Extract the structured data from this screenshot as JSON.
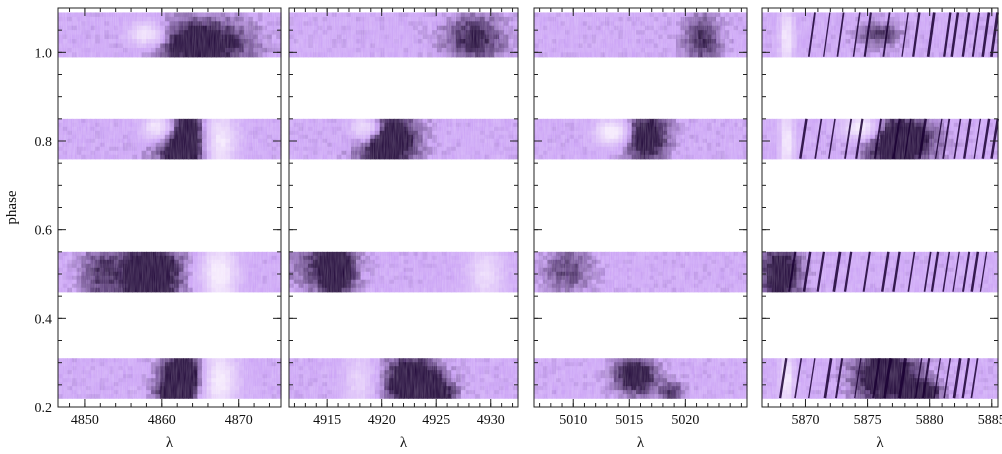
{
  "chart_data": {
    "type": "heatmap",
    "ylabel": "phase",
    "ylim": [
      0.2,
      1.1
    ],
    "y_ticks": [
      0.2,
      0.4,
      0.6,
      0.8,
      1.0
    ],
    "y_tick_labels": [
      "0.2",
      "0.4",
      "0.6",
      "0.8",
      "1.0"
    ],
    "y_minor_step": 0.05,
    "colors": {
      "background": "#f4e8fc",
      "mid": "#c79cf5",
      "dark": "#1a0033",
      "frame": "#222222"
    },
    "phase_bands": [
      {
        "from": 0.22,
        "to": 0.31
      },
      {
        "from": 0.46,
        "to": 0.55
      },
      {
        "from": 0.76,
        "to": 0.85
      },
      {
        "from": 0.99,
        "to": 1.09
      }
    ],
    "panels": [
      {
        "xlabel": "λ",
        "xlim": [
          4846.5,
          4875.5
        ],
        "x_ticks": [
          4850,
          4860,
          4870
        ],
        "x_tick_labels": [
          "4850",
          "4860",
          "4870"
        ],
        "x_minor_step": 2,
        "features": [
          {
            "type": "absorption",
            "x": 4862.8,
            "y": 0.27,
            "wx": 2.0,
            "wy": 0.04,
            "strength": 1.0
          },
          {
            "type": "absorption",
            "x": 4861.5,
            "y": 0.23,
            "wx": 1.5,
            "wy": 0.02,
            "strength": 0.7
          },
          {
            "type": "emission",
            "x": 4867.5,
            "y": 0.26,
            "wx": 1.6,
            "wy": 0.05,
            "strength": 0.9
          },
          {
            "type": "absorption",
            "x": 4858.5,
            "y": 0.5,
            "wx": 2.8,
            "wy": 0.05,
            "strength": 1.0
          },
          {
            "type": "absorption",
            "x": 4852.0,
            "y": 0.5,
            "wx": 2.0,
            "wy": 0.05,
            "strength": 0.45
          },
          {
            "type": "emission",
            "x": 4867.5,
            "y": 0.5,
            "wx": 1.6,
            "wy": 0.05,
            "strength": 0.9
          },
          {
            "type": "absorption",
            "x": 4863.0,
            "y": 0.8,
            "wx": 2.6,
            "wy": 0.05,
            "strength": 1.0
          },
          {
            "type": "emission",
            "x": 4859.5,
            "y": 0.83,
            "wx": 1.4,
            "wy": 0.02,
            "strength": 1.0
          },
          {
            "type": "emission",
            "x": 4867.5,
            "y": 0.8,
            "wx": 1.5,
            "wy": 0.05,
            "strength": 0.9
          },
          {
            "type": "absorption",
            "x": 4865.0,
            "y": 1.02,
            "wx": 4.5,
            "wy": 0.04,
            "strength": 0.85
          },
          {
            "type": "emission",
            "x": 4858.0,
            "y": 1.04,
            "wx": 1.6,
            "wy": 0.02,
            "strength": 0.9
          }
        ]
      },
      {
        "xlabel": "λ",
        "xlim": [
          4911.5,
          4932.5
        ],
        "x_ticks": [
          4915,
          4920,
          4925,
          4930
        ],
        "x_tick_labels": [
          "4915",
          "4920",
          "4925",
          "4930"
        ],
        "x_minor_step": 1,
        "features": [
          {
            "type": "absorption",
            "x": 4922.8,
            "y": 0.26,
            "wx": 1.8,
            "wy": 0.04,
            "strength": 1.0
          },
          {
            "type": "absorption",
            "x": 4925.2,
            "y": 0.23,
            "wx": 1.2,
            "wy": 0.02,
            "strength": 0.6
          },
          {
            "type": "emission",
            "x": 4918.0,
            "y": 0.26,
            "wx": 1.0,
            "wy": 0.05,
            "strength": 0.5
          },
          {
            "type": "absorption",
            "x": 4915.8,
            "y": 0.51,
            "wx": 1.3,
            "wy": 0.05,
            "strength": 0.9
          },
          {
            "type": "absorption",
            "x": 4913.0,
            "y": 0.52,
            "wx": 1.5,
            "wy": 0.04,
            "strength": 0.3
          },
          {
            "type": "emission",
            "x": 4929.5,
            "y": 0.5,
            "wx": 1.2,
            "wy": 0.05,
            "strength": 0.6
          },
          {
            "type": "absorption",
            "x": 4920.5,
            "y": 0.8,
            "wx": 1.9,
            "wy": 0.05,
            "strength": 0.95
          },
          {
            "type": "emission",
            "x": 4918.5,
            "y": 0.83,
            "wx": 1.0,
            "wy": 0.02,
            "strength": 0.9
          },
          {
            "type": "absorption",
            "x": 4928.5,
            "y": 1.03,
            "wx": 2.0,
            "wy": 0.04,
            "strength": 0.6
          }
        ]
      },
      {
        "xlabel": "λ",
        "xlim": [
          5006.5,
          5025.5
        ],
        "x_ticks": [
          5010,
          5015,
          5020
        ],
        "x_tick_labels": [
          "5010",
          "5015",
          "5020"
        ],
        "x_minor_step": 1,
        "features": [
          {
            "type": "absorption",
            "x": 5015.6,
            "y": 0.27,
            "wx": 1.3,
            "wy": 0.03,
            "strength": 0.85
          },
          {
            "type": "absorption",
            "x": 5018.8,
            "y": 0.23,
            "wx": 0.8,
            "wy": 0.02,
            "strength": 0.5
          },
          {
            "type": "absorption",
            "x": 5009.5,
            "y": 0.51,
            "wx": 1.5,
            "wy": 0.04,
            "strength": 0.45
          },
          {
            "type": "absorption",
            "x": 5016.5,
            "y": 0.81,
            "wx": 1.4,
            "wy": 0.04,
            "strength": 0.85
          },
          {
            "type": "emission",
            "x": 5013.5,
            "y": 0.82,
            "wx": 1.0,
            "wy": 0.02,
            "strength": 1.0
          },
          {
            "type": "absorption",
            "x": 5021.5,
            "y": 1.03,
            "wx": 1.2,
            "wy": 0.04,
            "strength": 0.55
          }
        ]
      },
      {
        "xlabel": "λ",
        "xlim": [
          5866.5,
          5885.5
        ],
        "x_ticks": [
          5870,
          5875,
          5880,
          5885
        ],
        "x_tick_labels": [
          "5870",
          "5875",
          "5880",
          "5885"
        ],
        "x_minor_step": 1,
        "features": [
          {
            "type": "absorption",
            "x": 5876.5,
            "y": 0.27,
            "wx": 1.8,
            "wy": 0.04,
            "strength": 1.0
          },
          {
            "type": "absorption",
            "x": 5879.5,
            "y": 0.23,
            "wx": 1.0,
            "wy": 0.02,
            "strength": 0.8
          },
          {
            "type": "emission",
            "x": 5868.5,
            "y": 0.26,
            "wx": 0.4,
            "wy": 0.05,
            "strength": 0.8
          },
          {
            "type": "absorption",
            "x": 5868.0,
            "y": 0.5,
            "wx": 1.2,
            "wy": 0.05,
            "strength": 0.8
          },
          {
            "type": "absorption",
            "x": 5877.5,
            "y": 0.8,
            "wx": 2.0,
            "wy": 0.04,
            "strength": 1.0
          },
          {
            "type": "emission",
            "x": 5874.5,
            "y": 0.83,
            "wx": 1.0,
            "wy": 0.02,
            "strength": 1.0
          },
          {
            "type": "emission",
            "x": 5868.5,
            "y": 0.8,
            "wx": 0.4,
            "wy": 0.05,
            "strength": 0.8
          },
          {
            "type": "emission",
            "x": 5868.5,
            "y": 1.03,
            "wx": 0.4,
            "wy": 0.05,
            "strength": 0.8
          },
          {
            "type": "absorption",
            "x": 5876.0,
            "y": 1.04,
            "wx": 1.2,
            "wy": 0.02,
            "strength": 0.5
          }
        ],
        "telluric_lines": [
          5869.6,
          5870.8,
          5871.9,
          5873.2,
          5874.1,
          5875.6,
          5877.1,
          5878.0,
          5879.2,
          5880.5,
          5881.1,
          5882.0,
          5882.8,
          5883.6,
          5884.3,
          5885.0
        ]
      }
    ]
  }
}
